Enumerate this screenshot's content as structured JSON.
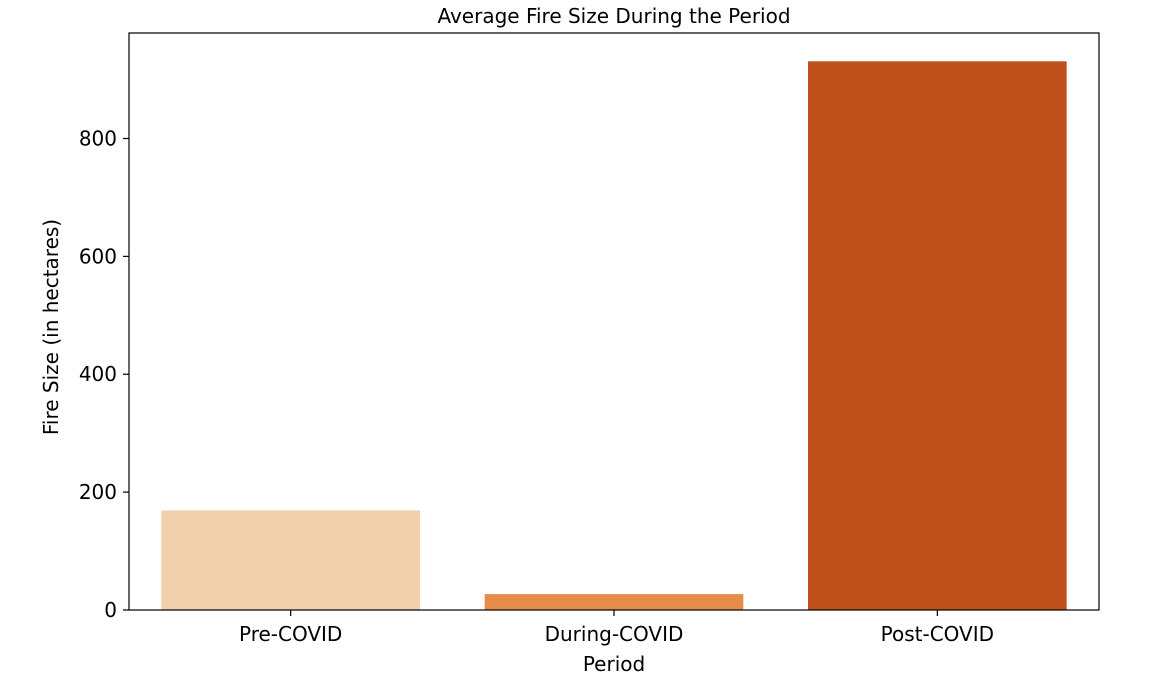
{
  "chart_data": {
    "type": "bar",
    "title": "Average Fire Size During the Period",
    "xlabel": "Period",
    "ylabel": "Fire Size (in hectares)",
    "categories": [
      "Pre-COVID",
      "During-COVID",
      "Post-COVID"
    ],
    "values": [
      169,
      27,
      931
    ],
    "colors": [
      "#f2d0ae",
      "#e78b4b",
      "#be511b"
    ],
    "ylim": [
      0,
      979
    ],
    "yticks": [
      0,
      200,
      400,
      600,
      800
    ],
    "grid": false
  }
}
